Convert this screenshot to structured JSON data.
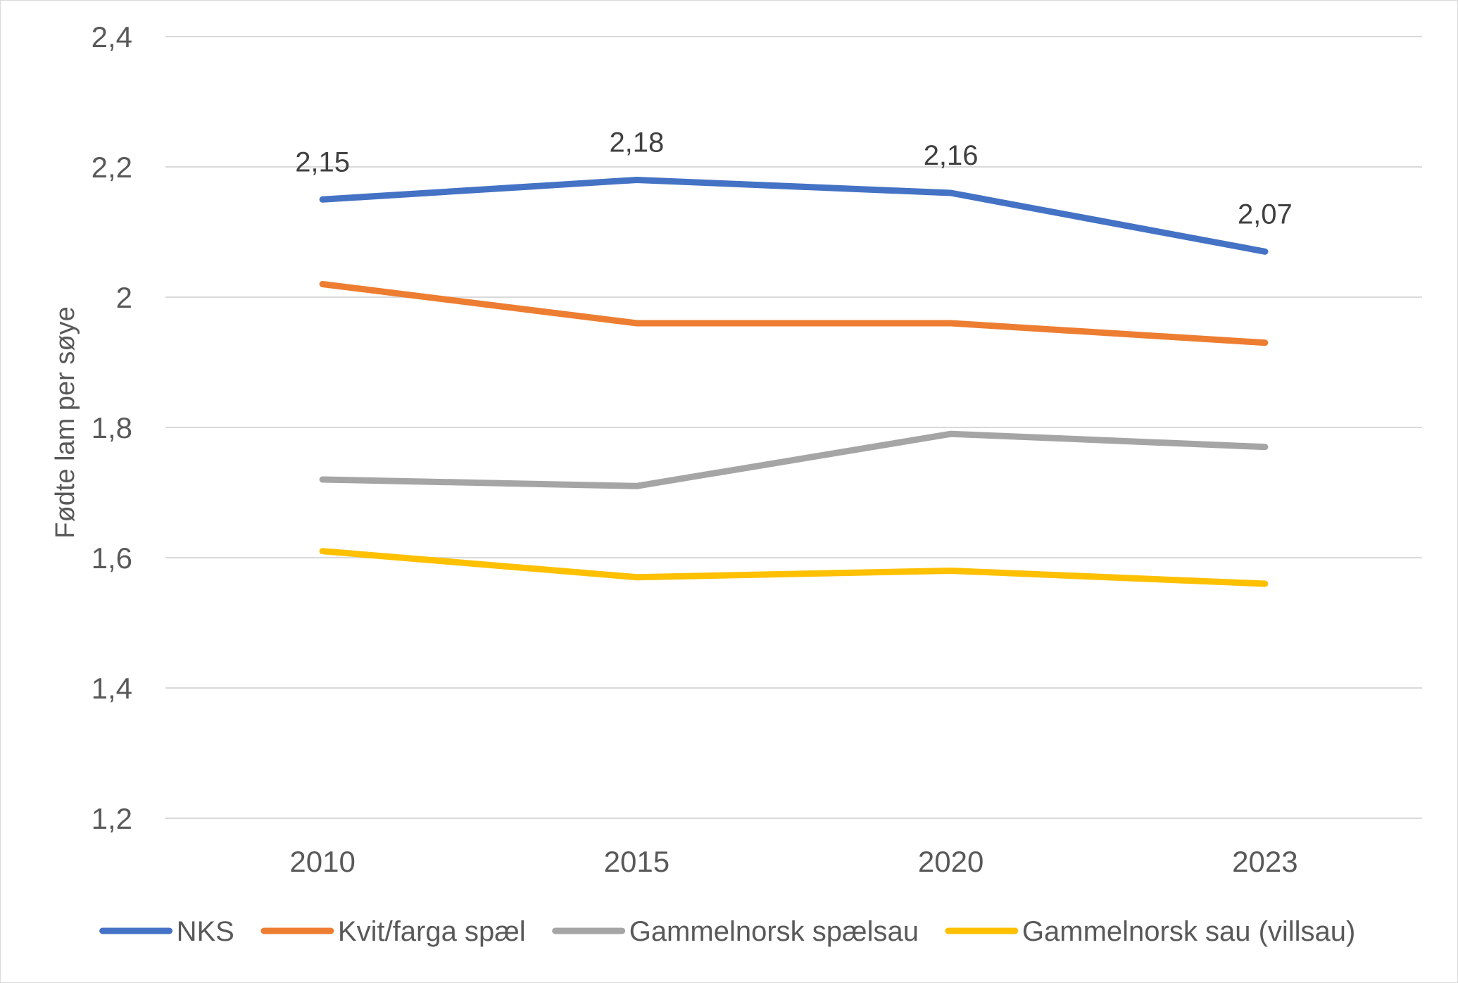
{
  "chart_data": {
    "type": "line",
    "title": "",
    "xlabel": "",
    "ylabel": "Fødte lam per søye",
    "categories": [
      "2010",
      "2015",
      "2020",
      "2023"
    ],
    "y_tick_labels": [
      "1,2",
      "1,4",
      "1,6",
      "1,8",
      "2",
      "2,2",
      "2,4"
    ],
    "y_ticks": [
      1.2,
      1.4,
      1.6,
      1.8,
      2.0,
      2.2,
      2.4
    ],
    "ylim": [
      1.2,
      2.4
    ],
    "grid": true,
    "legend_position": "bottom",
    "series": [
      {
        "name": "NKS",
        "color": "#4472C4",
        "values": [
          2.15,
          2.18,
          2.16,
          2.07
        ],
        "data_labels": [
          "2,15",
          "2,18",
          "2,16",
          "2,07"
        ]
      },
      {
        "name": "Kvit/farga spæl",
        "color": "#ED7D31",
        "values": [
          2.02,
          1.96,
          1.96,
          1.93
        ]
      },
      {
        "name": "Gammelnorsk spælsau",
        "color": "#A5A5A5",
        "values": [
          1.72,
          1.71,
          1.79,
          1.77
        ]
      },
      {
        "name": "Gammelnorsk sau (villsau)",
        "color": "#FFC000",
        "values": [
          1.61,
          1.57,
          1.58,
          1.56
        ]
      }
    ]
  }
}
